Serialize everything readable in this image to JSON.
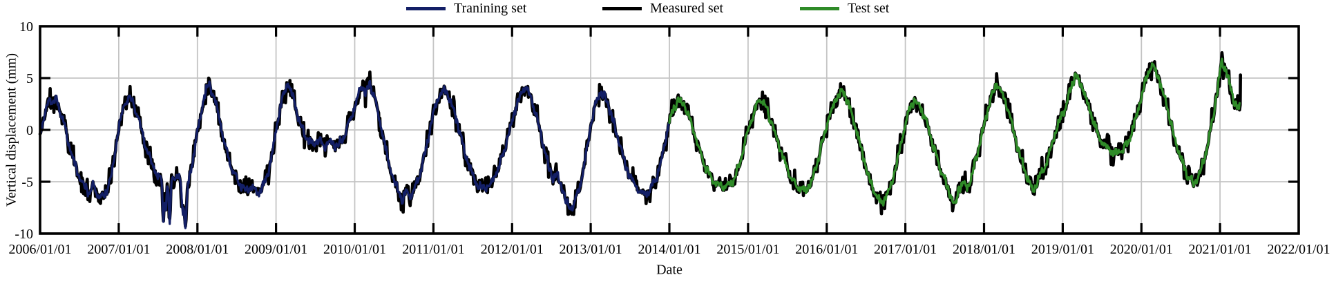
{
  "chart_data": {
    "type": "line",
    "title": "",
    "xlabel": "Date",
    "ylabel": "Vertical displacement (mm)",
    "xlim": [
      2006,
      2022
    ],
    "ylim": [
      -10,
      10
    ],
    "grid": true,
    "grid_color": "#c4c4c4",
    "frame_color": "#000000",
    "x_tick_years": [
      2006,
      2007,
      2008,
      2009,
      2010,
      2011,
      2012,
      2013,
      2014,
      2015,
      2016,
      2017,
      2018,
      2019,
      2020,
      2021,
      2022
    ],
    "x_tick_labels": [
      "2006/01/01",
      "2007/01/01",
      "2008/01/01",
      "2009/01/01",
      "2010/01/01",
      "2011/01/01",
      "2012/01/01",
      "2013/01/01",
      "2014/01/01",
      "2015/01/01",
      "2016/01/01",
      "2017/01/01",
      "2018/01/01",
      "2019/01/01",
      "2020/01/01",
      "2021/01/01",
      "2022/01/01"
    ],
    "y_tick_values": [
      10,
      5,
      0,
      -5,
      -10
    ],
    "y_tick_labels": [
      "10",
      "5",
      "0",
      "-5",
      "-10"
    ],
    "legend": {
      "position": "top",
      "entries": [
        {
          "label": "Tranining set",
          "color": "#131f66"
        },
        {
          "label": "Measured set",
          "color": "#000000"
        },
        {
          "label": "Test set",
          "color": "#2f8b28"
        }
      ]
    },
    "series": [
      {
        "name": "Measured set",
        "role": "measured",
        "color": "#000000",
        "t_range": [
          2006.0,
          2021.252
        ]
      },
      {
        "name": "Tranining set",
        "role": "training",
        "color": "#131f66",
        "t_range": [
          2006.0,
          2014.0
        ]
      },
      {
        "name": "Test set",
        "role": "test",
        "color": "#2f8b28",
        "t_range": [
          2014.0,
          2021.252
        ]
      }
    ],
    "signal_keypoints": [
      [
        2006.0,
        -0.3
      ],
      [
        2006.04,
        0.8
      ],
      [
        2006.08,
        2.0
      ],
      [
        2006.12,
        3.2
      ],
      [
        2006.16,
        2.4
      ],
      [
        2006.2,
        3.1
      ],
      [
        2006.24,
        2.2
      ],
      [
        2006.3,
        0.8
      ],
      [
        2006.38,
        -1.8
      ],
      [
        2006.46,
        -3.8
      ],
      [
        2006.54,
        -5.2
      ],
      [
        2006.62,
        -6.0
      ],
      [
        2006.68,
        -5.4
      ],
      [
        2006.74,
        -6.3
      ],
      [
        2006.8,
        -6.5
      ],
      [
        2006.86,
        -5.7
      ],
      [
        2006.92,
        -3.8
      ],
      [
        2006.97,
        -1.2
      ],
      [
        2007.02,
        1.0
      ],
      [
        2007.07,
        2.4
      ],
      [
        2007.12,
        3.1
      ],
      [
        2007.18,
        2.7
      ],
      [
        2007.25,
        1.2
      ],
      [
        2007.33,
        -1.2
      ],
      [
        2007.4,
        -2.8
      ],
      [
        2007.45,
        -3.5
      ],
      [
        2007.49,
        -4.4
      ],
      [
        2007.53,
        -4.6
      ],
      [
        2007.55,
        -5.2
      ],
      [
        2007.565,
        -9.3
      ],
      [
        2007.58,
        -6.5
      ],
      [
        2007.6,
        -7.5
      ],
      [
        2007.615,
        -5.3
      ],
      [
        2007.63,
        -6.0
      ],
      [
        2007.645,
        -9.6
      ],
      [
        2007.66,
        -7.0
      ],
      [
        2007.672,
        -4.6
      ],
      [
        2007.7,
        -4.3
      ],
      [
        2007.73,
        -4.7
      ],
      [
        2007.76,
        -4.4
      ],
      [
        2007.79,
        -5.0
      ],
      [
        2007.815,
        -8.1
      ],
      [
        2007.83,
        -7.2
      ],
      [
        2007.845,
        -9.7
      ],
      [
        2007.86,
        -8.0
      ],
      [
        2007.875,
        -5.5
      ],
      [
        2007.9,
        -4.5
      ],
      [
        2007.94,
        -3.0
      ],
      [
        2007.97,
        -1.5
      ],
      [
        2008.02,
        0.5
      ],
      [
        2008.08,
        3.0
      ],
      [
        2008.14,
        4.6
      ],
      [
        2008.2,
        3.5
      ],
      [
        2008.27,
        1.5
      ],
      [
        2008.35,
        -1.5
      ],
      [
        2008.45,
        -4.0
      ],
      [
        2008.55,
        -5.3
      ],
      [
        2008.62,
        -5.8
      ],
      [
        2008.7,
        -5.5
      ],
      [
        2008.78,
        -6.2
      ],
      [
        2008.85,
        -5.2
      ],
      [
        2008.92,
        -3.5
      ],
      [
        2008.97,
        -1.5
      ],
      [
        2009.02,
        0.8
      ],
      [
        2009.08,
        3.0
      ],
      [
        2009.15,
        4.7
      ],
      [
        2009.22,
        3.0
      ],
      [
        2009.3,
        0.8
      ],
      [
        2009.38,
        -0.8
      ],
      [
        2009.46,
        -1.4
      ],
      [
        2009.54,
        -1.1
      ],
      [
        2009.62,
        -1.5
      ],
      [
        2009.7,
        -1.2
      ],
      [
        2009.78,
        -1.6
      ],
      [
        2009.85,
        -0.9
      ],
      [
        2009.92,
        0.5
      ],
      [
        2010.0,
        2.2
      ],
      [
        2010.05,
        3.6
      ],
      [
        2010.1,
        4.2
      ],
      [
        2010.14,
        3.6
      ],
      [
        2010.19,
        4.4
      ],
      [
        2010.26,
        3.0
      ],
      [
        2010.33,
        0.5
      ],
      [
        2010.42,
        -2.8
      ],
      [
        2010.5,
        -5.0
      ],
      [
        2010.57,
        -6.2
      ],
      [
        2010.61,
        -6.8
      ],
      [
        2010.65,
        -6.0
      ],
      [
        2010.7,
        -6.5
      ],
      [
        2010.77,
        -5.5
      ],
      [
        2010.85,
        -3.8
      ],
      [
        2010.93,
        -1.0
      ],
      [
        2011.0,
        1.8
      ],
      [
        2011.08,
        3.3
      ],
      [
        2011.14,
        3.9
      ],
      [
        2011.21,
        3.0
      ],
      [
        2011.3,
        0.8
      ],
      [
        2011.4,
        -2.2
      ],
      [
        2011.5,
        -4.5
      ],
      [
        2011.58,
        -5.4
      ],
      [
        2011.65,
        -5.7
      ],
      [
        2011.73,
        -5.2
      ],
      [
        2011.8,
        -4.2
      ],
      [
        2011.88,
        -2.5
      ],
      [
        2011.95,
        -0.5
      ],
      [
        2012.02,
        1.5
      ],
      [
        2012.1,
        3.2
      ],
      [
        2012.17,
        4.2
      ],
      [
        2012.25,
        3.0
      ],
      [
        2012.33,
        0.8
      ],
      [
        2012.4,
        -1.5
      ],
      [
        2012.47,
        -3.8
      ],
      [
        2012.52,
        -4.6
      ],
      [
        2012.57,
        -4.2
      ],
      [
        2012.62,
        -5.2
      ],
      [
        2012.68,
        -6.8
      ],
      [
        2012.73,
        -7.7
      ],
      [
        2012.8,
        -6.9
      ],
      [
        2012.87,
        -5.2
      ],
      [
        2012.93,
        -3.0
      ],
      [
        2013.0,
        0.5
      ],
      [
        2013.06,
        2.5
      ],
      [
        2013.12,
        3.7
      ],
      [
        2013.2,
        2.9
      ],
      [
        2013.28,
        1.0
      ],
      [
        2013.37,
        -1.5
      ],
      [
        2013.46,
        -3.8
      ],
      [
        2013.55,
        -5.2
      ],
      [
        2013.63,
        -6.0
      ],
      [
        2013.7,
        -6.3
      ],
      [
        2013.77,
        -5.5
      ],
      [
        2013.84,
        -4.5
      ],
      [
        2013.91,
        -2.5
      ],
      [
        2013.97,
        -0.2
      ],
      [
        2014.0,
        0.8
      ],
      [
        2014.06,
        2.2
      ],
      [
        2014.12,
        2.9
      ],
      [
        2014.19,
        2.4
      ],
      [
        2014.27,
        0.8
      ],
      [
        2014.36,
        -1.5
      ],
      [
        2014.45,
        -3.5
      ],
      [
        2014.55,
        -4.8
      ],
      [
        2014.63,
        -5.3
      ],
      [
        2014.72,
        -5.5
      ],
      [
        2014.8,
        -5.1
      ],
      [
        2014.87,
        -3.8
      ],
      [
        2014.94,
        -1.8
      ],
      [
        2015.01,
        0.2
      ],
      [
        2015.08,
        1.8
      ],
      [
        2015.15,
        3.1
      ],
      [
        2015.23,
        2.2
      ],
      [
        2015.32,
        0.2
      ],
      [
        2015.42,
        -2.2
      ],
      [
        2015.52,
        -4.2
      ],
      [
        2015.62,
        -5.4
      ],
      [
        2015.72,
        -5.9
      ],
      [
        2015.8,
        -5.1
      ],
      [
        2015.88,
        -3.2
      ],
      [
        2015.95,
        -1.0
      ],
      [
        2016.03,
        1.2
      ],
      [
        2016.12,
        3.0
      ],
      [
        2016.2,
        3.8
      ],
      [
        2016.28,
        2.5
      ],
      [
        2016.37,
        0.2
      ],
      [
        2016.47,
        -2.8
      ],
      [
        2016.56,
        -5.2
      ],
      [
        2016.64,
        -6.5
      ],
      [
        2016.7,
        -7.1
      ],
      [
        2016.77,
        -6.2
      ],
      [
        2016.84,
        -4.8
      ],
      [
        2016.91,
        -2.5
      ],
      [
        2016.97,
        -0.5
      ],
      [
        2017.04,
        1.8
      ],
      [
        2017.11,
        2.9
      ],
      [
        2017.19,
        2.3
      ],
      [
        2017.28,
        0.5
      ],
      [
        2017.38,
        -2.2
      ],
      [
        2017.48,
        -4.5
      ],
      [
        2017.57,
        -6.2
      ],
      [
        2017.63,
        -7.4
      ],
      [
        2017.68,
        -5.6
      ],
      [
        2017.73,
        -5.1
      ],
      [
        2017.78,
        -5.6
      ],
      [
        2017.85,
        -4.2
      ],
      [
        2017.92,
        -2.2
      ],
      [
        2018.0,
        0.5
      ],
      [
        2018.08,
        2.8
      ],
      [
        2018.16,
        4.5
      ],
      [
        2018.24,
        3.4
      ],
      [
        2018.33,
        1.2
      ],
      [
        2018.43,
        -1.8
      ],
      [
        2018.53,
        -4.2
      ],
      [
        2018.62,
        -5.9
      ],
      [
        2018.7,
        -4.6
      ],
      [
        2018.78,
        -3.4
      ],
      [
        2018.86,
        -1.6
      ],
      [
        2018.93,
        0.2
      ],
      [
        2019.0,
        1.8
      ],
      [
        2019.04,
        2.0
      ],
      [
        2019.08,
        3.5
      ],
      [
        2019.16,
        5.3
      ],
      [
        2019.25,
        4.2
      ],
      [
        2019.35,
        1.8
      ],
      [
        2019.45,
        -0.5
      ],
      [
        2019.55,
        -1.7
      ],
      [
        2019.65,
        -2.2
      ],
      [
        2019.75,
        -2.1
      ],
      [
        2019.83,
        -1.2
      ],
      [
        2019.9,
        0.3
      ],
      [
        2020.0,
        3.2
      ],
      [
        2020.08,
        5.4
      ],
      [
        2020.14,
        6.2
      ],
      [
        2020.22,
        5.0
      ],
      [
        2020.32,
        2.5
      ],
      [
        2020.42,
        -0.8
      ],
      [
        2020.52,
        -3.2
      ],
      [
        2020.6,
        -4.5
      ],
      [
        2020.67,
        -5.2
      ],
      [
        2020.74,
        -4.2
      ],
      [
        2020.81,
        -2.6
      ],
      [
        2020.89,
        0.2
      ],
      [
        2020.96,
        3.5
      ],
      [
        2021.02,
        6.5
      ],
      [
        2021.07,
        5.9
      ],
      [
        2021.12,
        4.4
      ],
      [
        2021.17,
        3.0
      ],
      [
        2021.22,
        2.1
      ],
      [
        2021.245,
        1.9
      ],
      [
        2021.252,
        3.3
      ]
    ],
    "measured_end_spike": [
      [
        2021.256,
        2.4
      ],
      [
        2021.26,
        5.3
      ]
    ],
    "noise": {
      "seed": 11,
      "step_years": 0.008,
      "shared": 0.28,
      "measured_extra": 1.1,
      "wobble": 0.3
    }
  }
}
